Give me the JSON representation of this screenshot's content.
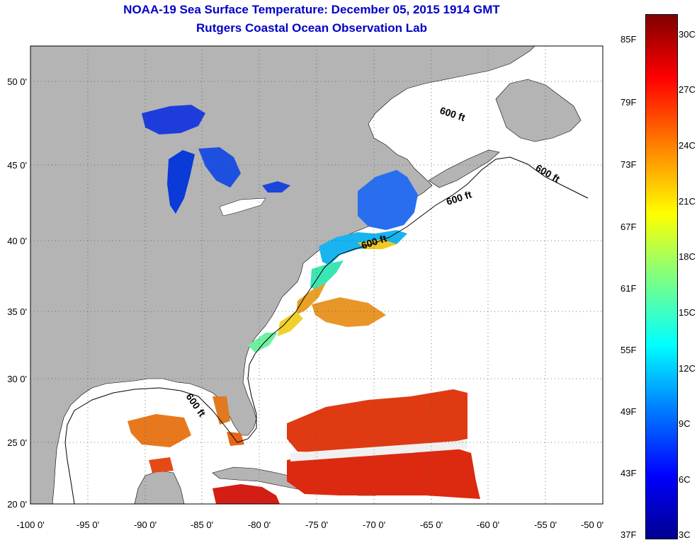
{
  "title": "NOAA-19 Sea Surface Temperature:  December 05, 2015 1914 GMT",
  "subtitle": "Rutgers Coastal Ocean Observation Lab",
  "map": {
    "lat_labels": [
      "50 0'",
      "45 0'",
      "40 0'",
      "35 0'",
      "30 0'",
      "25 0'",
      "20 0'"
    ],
    "lon_labels": [
      "-100 0'",
      "-95 0'",
      "-90 0'",
      "-85 0'",
      "-80 0'",
      "-75 0'",
      "-70 0'",
      "-65 0'",
      "-60 0'",
      "-55 0'",
      "-50 0'"
    ],
    "contour_labels": [
      "600 ft",
      "600 ft",
      "600 ft",
      "600 ft",
      "600 ft"
    ],
    "land_color": "#b4b4b4",
    "grid": "dotted"
  },
  "colorbar": {
    "fahrenheit": [
      "85F",
      "79F",
      "73F",
      "67F",
      "61F",
      "55F",
      "49F",
      "43F",
      "37F"
    ],
    "celsius": [
      "30C",
      "27C",
      "24C",
      "21C",
      "18C",
      "15C",
      "12C",
      "9C",
      "6C",
      "3C"
    ]
  }
}
